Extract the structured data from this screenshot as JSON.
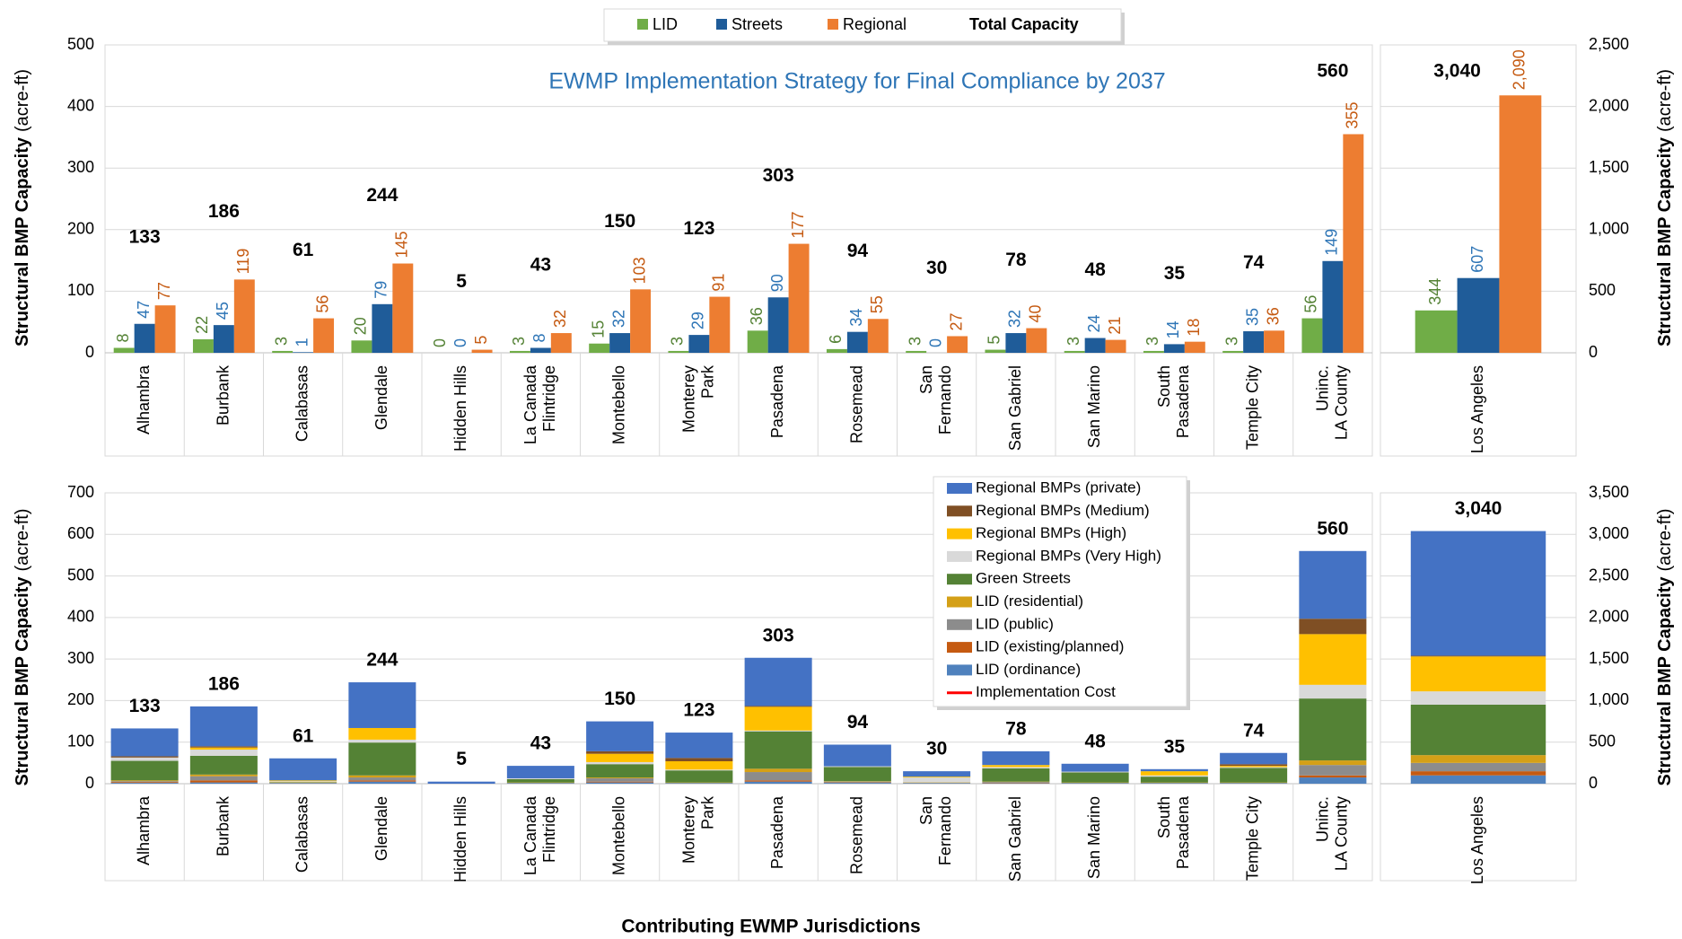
{
  "chart_data": [
    {
      "type": "bar",
      "title": "EWMP Implementation Strategy for Final Compliance by 2037",
      "ylabel": "Structural BMP Capacity",
      "ylabel_unit": "(acre-ft)",
      "yaxis_side": "left",
      "categories": [
        "Alhambra",
        "Burbank",
        "Calabasas",
        "Glendale",
        "Hidden Hills",
        "La Canada\nFlintridge",
        "Montebello",
        "Monterey\nPark",
        "Pasadena",
        "Rosemead",
        "San\nFernando",
        "San Gabriel",
        "San Marino",
        "South\nPasadena",
        "Temple City",
        "Uninc.\nLA County"
      ],
      "series": [
        {
          "name": "LID",
          "color": "#70ad47",
          "label_color": "#548235",
          "values": [
            8,
            22,
            3,
            20,
            0,
            3,
            15,
            3,
            36,
            6,
            3,
            5,
            3,
            3,
            3,
            56
          ]
        },
        {
          "name": "Streets",
          "color": "#1f5c99",
          "label_color": "#2e75b6",
          "values": [
            47,
            45,
            1,
            79,
            0,
            8,
            32,
            29,
            90,
            34,
            0,
            32,
            24,
            14,
            35,
            149
          ]
        },
        {
          "name": "Regional",
          "color": "#ed7d31",
          "label_color": "#c55a11",
          "values": [
            77,
            119,
            56,
            145,
            5,
            32,
            103,
            91,
            177,
            55,
            27,
            40,
            21,
            18,
            36,
            355
          ]
        }
      ],
      "totals_name": "Total Capacity",
      "totals": [
        133,
        186,
        61,
        244,
        5,
        43,
        150,
        123,
        303,
        94,
        30,
        78,
        48,
        35,
        74,
        560
      ],
      "ylim": [
        0,
        500
      ],
      "yticks": [
        0,
        100,
        200,
        300,
        400,
        500
      ],
      "grid": true
    },
    {
      "type": "bar",
      "ylabel": "Structural BMP Capacity",
      "ylabel_unit": "(acre-ft)",
      "yaxis_side": "right",
      "categories": [
        "Los Angeles"
      ],
      "series": [
        {
          "color": "#70ad47",
          "label_color": "#548235",
          "values": [
            344
          ]
        },
        {
          "color": "#1f5c99",
          "label_color": "#2e75b6",
          "values": [
            607
          ]
        },
        {
          "color": "#ed7d31",
          "label_color": "#c55a11",
          "values": [
            2090
          ],
          "value_labels": [
            "2,090"
          ]
        }
      ],
      "totals": [
        3040
      ],
      "totals_labels": [
        "3,040"
      ],
      "ylim": [
        0,
        2500
      ],
      "yticks": [
        0,
        500,
        {
          "value": 1000,
          "label": "1,000"
        },
        {
          "value": 1500,
          "label": "1,500"
        },
        {
          "value": 2000,
          "label": "2,000"
        },
        {
          "value": 2500,
          "label": "2,500"
        }
      ],
      "grid": true
    },
    {
      "type": "stacked_bar",
      "ylabel": "Structural BMP Capacity",
      "ylabel_unit": "(acre-ft)",
      "yaxis_side": "left",
      "xlabel": "Contributing EWMP Jurisdictions",
      "categories": [
        "Alhambra",
        "Burbank",
        "Calabasas",
        "Glendale",
        "Hidden Hills",
        "La Canada\nFlintridge",
        "Montebello",
        "Monterey\nPark",
        "Pasadena",
        "Rosemead",
        "San\nFernando",
        "San Gabriel",
        "San Marino",
        "South\nPasadena",
        "Temple City",
        "Uninc.\nLA County"
      ],
      "series": [
        {
          "name": "LID (ordinance)",
          "color": "#4f81bd",
          "values": [
            2,
            3,
            1,
            5,
            0,
            1,
            3,
            1,
            5,
            2,
            1,
            1,
            1,
            1,
            1,
            15
          ]
        },
        {
          "name": "LID (existing/planned)",
          "color": "#c55a11",
          "values": [
            2,
            5,
            0,
            3,
            0,
            0,
            2,
            0,
            3,
            1,
            0,
            1,
            0,
            0,
            0,
            5
          ]
        },
        {
          "name": "LID (public)",
          "color": "#8c8c8c",
          "values": [
            2,
            10,
            1,
            7,
            0,
            1,
            8,
            1,
            20,
            2,
            1,
            2,
            1,
            1,
            1,
            25
          ]
        },
        {
          "name": "LID (residential)",
          "color": "#d4a017",
          "values": [
            2,
            4,
            1,
            5,
            0,
            1,
            2,
            1,
            8,
            1,
            1,
            1,
            1,
            1,
            1,
            11
          ]
        },
        {
          "name": "Green Streets",
          "color": "#548235",
          "values": [
            47,
            45,
            1,
            79,
            0,
            8,
            32,
            29,
            90,
            34,
            0,
            32,
            24,
            14,
            35,
            149
          ]
        },
        {
          "name": "Regional BMPs (Very High)",
          "color": "#d9d9d9",
          "values": [
            8,
            15,
            2,
            7,
            0,
            2,
            5,
            2,
            2,
            2,
            12,
            3,
            2,
            3,
            2,
            33
          ]
        },
        {
          "name": "Regional BMPs (High)",
          "color": "#ffc000",
          "values": [
            0,
            5,
            2,
            28,
            0,
            0,
            20,
            20,
            57,
            0,
            2,
            5,
            0,
            10,
            3,
            122
          ]
        },
        {
          "name": "Regional BMPs (Medium)",
          "color": "#7f4f24",
          "values": [
            3,
            3,
            0,
            0,
            0,
            0,
            6,
            8,
            2,
            0,
            0,
            0,
            0,
            0,
            4,
            37
          ]
        },
        {
          "name": "Regional BMPs (private)",
          "color": "#4472c4",
          "values": [
            67,
            96,
            53,
            110,
            5,
            30,
            72,
            61,
            116,
            52,
            13,
            33,
            19,
            5,
            27,
            163
          ]
        }
      ],
      "cost_legend": {
        "name": "Implementation Cost",
        "color": "#ff0000"
      },
      "totals": [
        133,
        186,
        61,
        244,
        5,
        43,
        150,
        123,
        303,
        94,
        30,
        78,
        48,
        35,
        74,
        560
      ],
      "ylim": [
        0,
        700
      ],
      "yticks": [
        0,
        100,
        200,
        300,
        400,
        500,
        600,
        700
      ],
      "grid": true
    },
    {
      "type": "stacked_bar",
      "ylabel": "Structural BMP Capacity",
      "ylabel_unit": "(acre-ft)",
      "yaxis_side": "right",
      "categories": [
        "Los Angeles"
      ],
      "series": [
        {
          "color": "#4f81bd",
          "values": [
            100
          ]
        },
        {
          "color": "#c55a11",
          "values": [
            50
          ]
        },
        {
          "color": "#8c8c8c",
          "values": [
            100
          ]
        },
        {
          "color": "#d4a017",
          "values": [
            94
          ]
        },
        {
          "color": "#548235",
          "values": [
            607
          ]
        },
        {
          "color": "#d9d9d9",
          "values": [
            160
          ]
        },
        {
          "color": "#ffc000",
          "values": [
            420
          ]
        },
        {
          "color": "#7f4f24",
          "values": [
            9
          ]
        },
        {
          "color": "#4472c4",
          "values": [
            1500
          ]
        }
      ],
      "totals": [
        3040
      ],
      "totals_labels": [
        "3,040"
      ],
      "ylim": [
        0,
        3500
      ],
      "yticks": [
        0,
        500,
        {
          "value": 1000,
          "label": "1,000"
        },
        {
          "value": 1500,
          "label": "1,500"
        },
        {
          "value": 2000,
          "label": "2,000"
        },
        {
          "value": 2500,
          "label": "2,500"
        },
        {
          "value": 3000,
          "label": "3,000"
        },
        {
          "value": 3500,
          "label": "3,500"
        }
      ],
      "grid": true
    }
  ]
}
